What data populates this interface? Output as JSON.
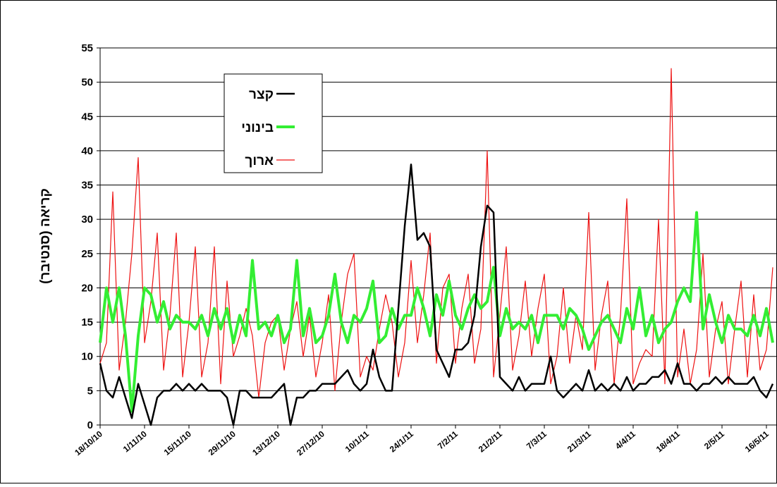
{
  "chart_data": {
    "type": "line",
    "y_label": "קריאה (סנטיבר)",
    "categories": [
      "18/10/10",
      null,
      null,
      null,
      null,
      null,
      null,
      "1/11/10",
      null,
      null,
      null,
      null,
      null,
      null,
      "15/11/10",
      null,
      null,
      null,
      null,
      null,
      null,
      "29/11/10",
      null,
      null,
      null,
      null,
      null,
      null,
      "13/12/10",
      null,
      null,
      null,
      null,
      null,
      null,
      "27/12/10",
      null,
      null,
      null,
      null,
      null,
      null,
      "10/1/11",
      null,
      null,
      null,
      null,
      null,
      null,
      "24/1/11",
      null,
      null,
      null,
      null,
      null,
      null,
      "7/2/11",
      null,
      null,
      null,
      null,
      null,
      null,
      "21/2/11",
      null,
      null,
      null,
      null,
      null,
      null,
      "7/3/11",
      null,
      null,
      null,
      null,
      null,
      null,
      "21/3/11",
      null,
      null,
      null,
      null,
      null,
      null,
      "4/4/11",
      null,
      null,
      null,
      null,
      null,
      null,
      "18/4/11",
      null,
      null,
      null,
      null,
      null,
      null,
      "2/5/11",
      null,
      null,
      null,
      null,
      null,
      null,
      "16/5/11",
      null
    ],
    "series": [
      {
        "name": "קצר",
        "color": "#000000",
        "values": [
          9,
          5,
          4,
          7,
          4,
          1,
          6,
          3,
          0,
          4,
          5,
          5,
          6,
          5,
          6,
          5,
          6,
          5,
          5,
          5,
          4,
          0,
          5,
          5,
          4,
          4,
          4,
          4,
          5,
          6,
          0,
          4,
          4,
          5,
          5,
          6,
          6,
          6,
          7,
          8,
          6,
          5,
          6,
          11,
          7,
          5,
          5,
          17,
          29,
          38,
          27,
          28,
          26,
          11,
          9,
          7,
          11,
          11,
          12,
          16,
          26,
          32,
          31,
          7,
          6,
          5,
          7,
          5,
          6,
          6,
          6,
          10,
          5,
          4,
          5,
          6,
          5,
          8,
          5,
          6,
          5,
          6,
          5,
          7,
          5,
          6,
          6,
          7,
          7,
          8,
          6,
          9,
          6,
          6,
          5,
          6,
          6,
          7,
          6,
          7,
          6,
          6,
          6,
          7,
          5,
          4,
          6
        ]
      },
      {
        "name": "בינוני",
        "color": "#33ee33",
        "values": [
          12,
          20,
          15,
          20,
          13,
          2,
          13,
          20,
          19,
          15,
          18,
          14,
          16,
          15,
          15,
          14,
          16,
          13,
          17,
          14,
          17,
          12,
          16,
          13,
          24,
          14,
          15,
          13,
          16,
          12,
          14,
          24,
          13,
          17,
          12,
          13,
          16,
          22,
          15,
          12,
          16,
          15,
          17,
          21,
          12,
          13,
          17,
          14,
          16,
          16,
          20,
          17,
          13,
          19,
          16,
          21,
          16,
          14,
          17,
          19,
          17,
          18,
          23,
          13,
          17,
          14,
          15,
          14,
          16,
          12,
          16,
          16,
          16,
          14,
          17,
          16,
          14,
          11,
          13,
          15,
          16,
          14,
          12,
          17,
          14,
          20,
          13,
          16,
          12,
          14,
          15,
          18,
          20,
          18,
          31,
          14,
          19,
          15,
          12,
          16,
          14,
          14,
          13,
          16,
          13,
          17,
          12
        ]
      },
      {
        "name": "ארוך",
        "color": "#ee1111",
        "values": [
          9,
          12,
          34,
          8,
          15,
          25,
          39,
          12,
          18,
          28,
          8,
          16,
          28,
          7,
          15,
          26,
          7,
          12,
          26,
          6,
          21,
          10,
          13,
          17,
          13,
          4,
          12,
          15,
          16,
          8,
          14,
          18,
          10,
          16,
          7,
          12,
          19,
          5,
          15,
          22,
          25,
          7,
          10,
          8,
          14,
          19,
          15,
          7,
          12,
          24,
          12,
          19,
          28,
          9,
          20,
          22,
          9,
          17,
          22,
          9,
          14,
          40,
          7,
          16,
          26,
          8,
          13,
          21,
          10,
          17,
          22,
          6,
          10,
          20,
          9,
          16,
          11,
          31,
          8,
          16,
          21,
          6,
          16,
          33,
          6,
          9,
          11,
          10,
          30,
          6,
          52,
          7,
          14,
          6,
          11,
          25,
          7,
          14,
          18,
          6,
          14,
          21,
          7,
          19,
          8,
          11,
          23
        ]
      }
    ],
    "ylim": [
      0,
      55
    ],
    "yticks": [
      0,
      5,
      10,
      15,
      20,
      25,
      30,
      35,
      40,
      45,
      50,
      55
    ],
    "grid": true
  }
}
